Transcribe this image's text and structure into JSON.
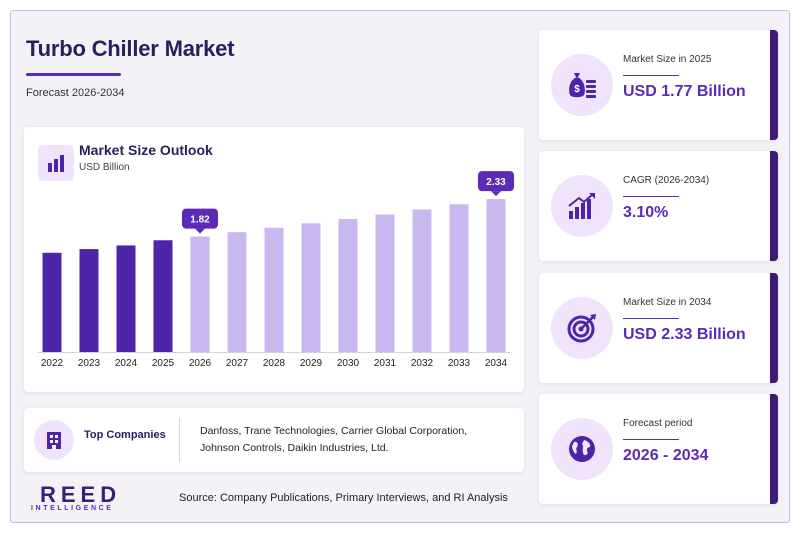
{
  "header": {
    "title": "Turbo Chiller Market",
    "subtitle": "Forecast 2026-2034"
  },
  "chart_card": {
    "title": "Market Size Outlook",
    "unit": "USD Billion"
  },
  "chart_data": {
    "type": "bar",
    "title": "Market Size Outlook",
    "ylabel": "USD Billion",
    "categories": [
      "2022",
      "2023",
      "2024",
      "2025",
      "2026",
      "2027",
      "2028",
      "2029",
      "2030",
      "2031",
      "2032",
      "2033",
      "2034"
    ],
    "values": [
      1.6,
      1.65,
      1.7,
      1.77,
      1.82,
      1.88,
      1.94,
      2.0,
      2.06,
      2.12,
      2.19,
      2.26,
      2.33
    ],
    "highlight_until": "2025",
    "callouts": [
      {
        "category": "2026",
        "label": "1.82"
      },
      {
        "category": "2034",
        "label": "2.33"
      }
    ],
    "colors": {
      "historical": "#4c25a8",
      "forecast": "#c9b8f0",
      "callout": "#5b2bb5"
    }
  },
  "companies": {
    "label": "Top Companies",
    "text": "Danfoss, Trane Technologies, Carrier Global Corporation, Johnson Controls, Daikin Industries, Ltd."
  },
  "brand": {
    "name": "REED",
    "tagline": "INTELLIGENCE"
  },
  "source": "Source: Company Publications, Primary Interviews, and RI Analysis",
  "kpis": [
    {
      "label": "Market Size in 2025",
      "value": "USD 1.77 Billion",
      "icon": "money-bag-icon"
    },
    {
      "label": "CAGR (2026-2034)",
      "value": "3.10%",
      "icon": "growth-chart-icon"
    },
    {
      "label": "Market Size in 2034",
      "value": "USD 2.33 Billion",
      "icon": "target-icon"
    },
    {
      "label": "Forecast period",
      "value": "2026 - 2034",
      "icon": "globe-icon"
    }
  ]
}
